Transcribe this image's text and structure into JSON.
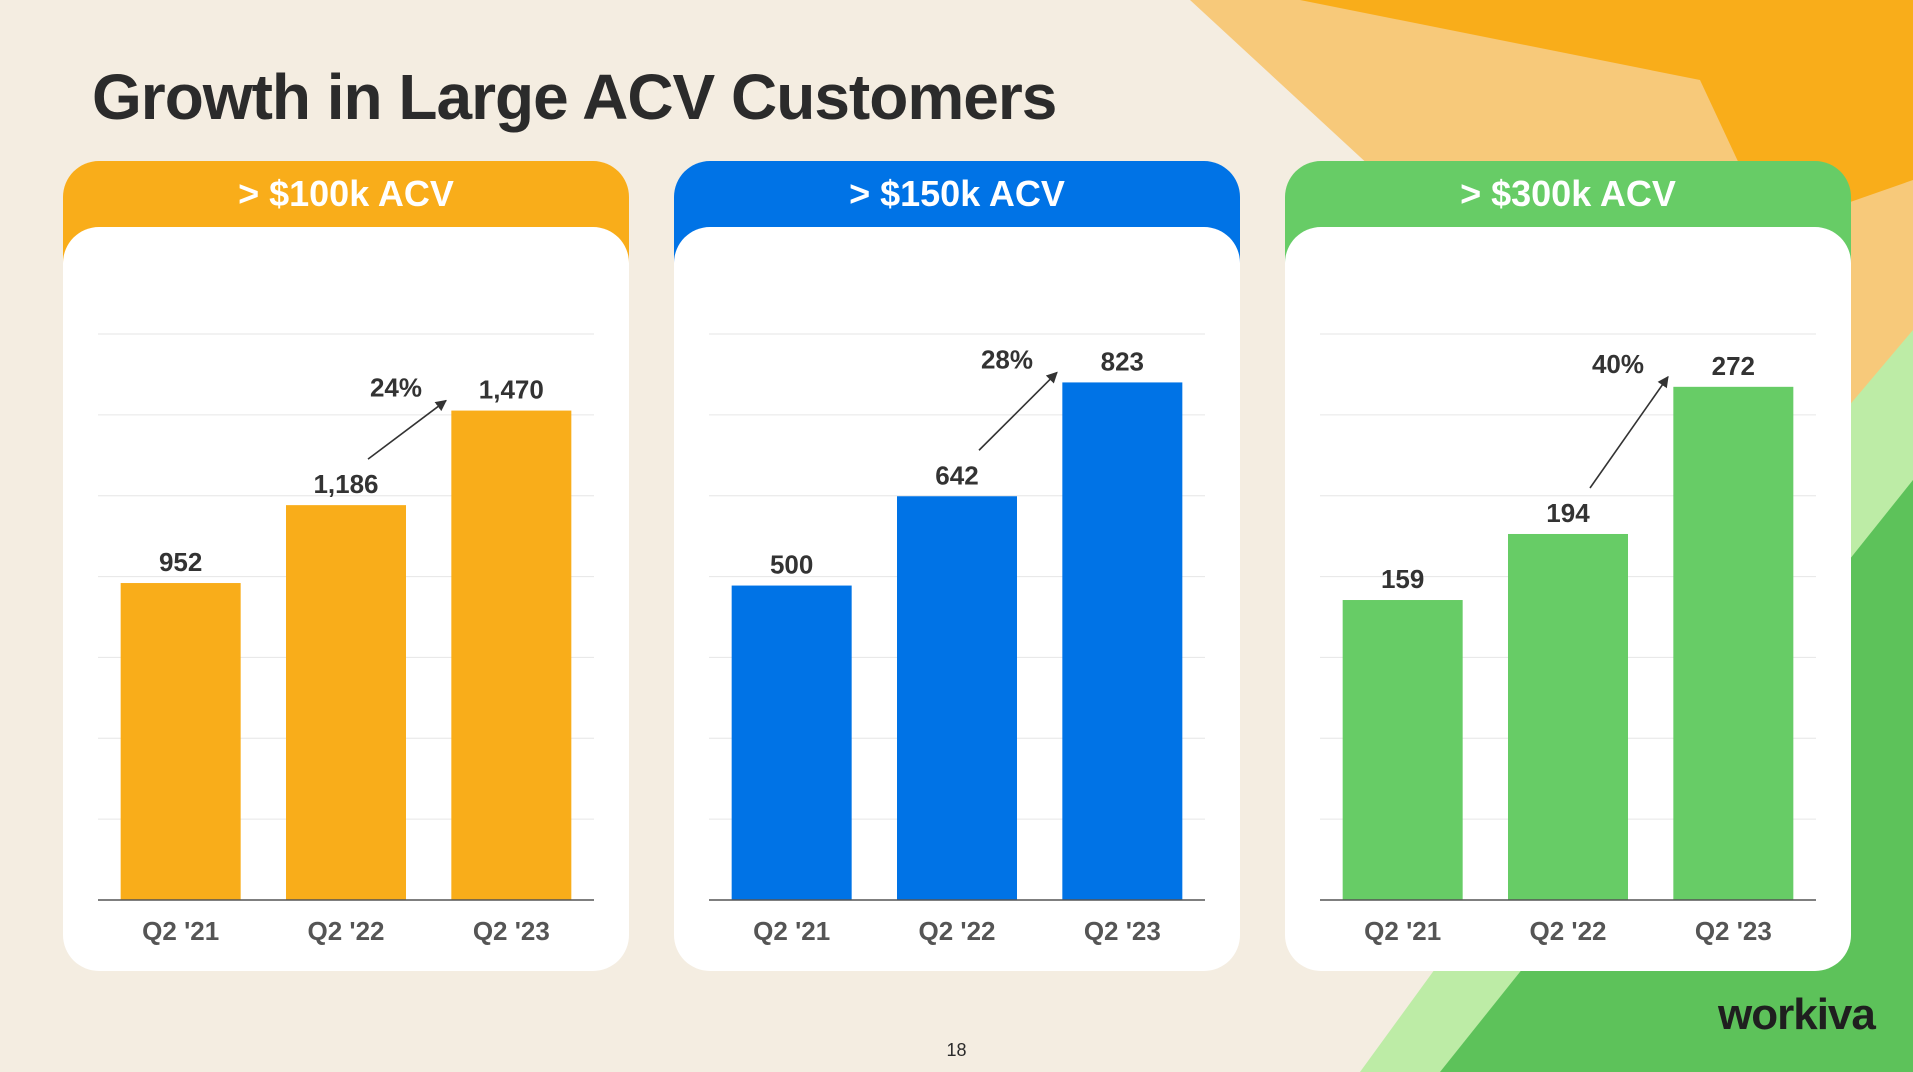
{
  "title": "Growth in Large ACV Customers",
  "page_number": "18",
  "logo_text": "workiva",
  "colors": {
    "background": "#f4ede1",
    "orange": "#f9ad1a",
    "blue": "#0073e6",
    "green": "#67cc66"
  },
  "chart_data": [
    {
      "type": "bar",
      "title": "> $100k ACV",
      "categories": [
        "Q2 '21",
        "Q2 '22",
        "Q2 '23"
      ],
      "values": [
        952,
        1186,
        1470
      ],
      "value_labels": [
        "952",
        "1,186",
        "1,470"
      ],
      "growth_label": "24%",
      "ylim": [
        0,
        1700
      ],
      "grid": true,
      "color": "#f9ad1a"
    },
    {
      "type": "bar",
      "title": "> $150k ACV",
      "categories": [
        "Q2 '21",
        "Q2 '22",
        "Q2 '23"
      ],
      "values": [
        500,
        642,
        823
      ],
      "value_labels": [
        "500",
        "642",
        "823"
      ],
      "growth_label": "28%",
      "ylim": [
        0,
        900
      ],
      "grid": true,
      "color": "#0073e6"
    },
    {
      "type": "bar",
      "title": "> $300k ACV",
      "categories": [
        "Q2 '21",
        "Q2 '22",
        "Q2 '23"
      ],
      "values": [
        159,
        194,
        272
      ],
      "value_labels": [
        "159",
        "194",
        "272"
      ],
      "growth_label": "40%",
      "ylim": [
        0,
        300
      ],
      "grid": true,
      "color": "#67cc66"
    }
  ]
}
